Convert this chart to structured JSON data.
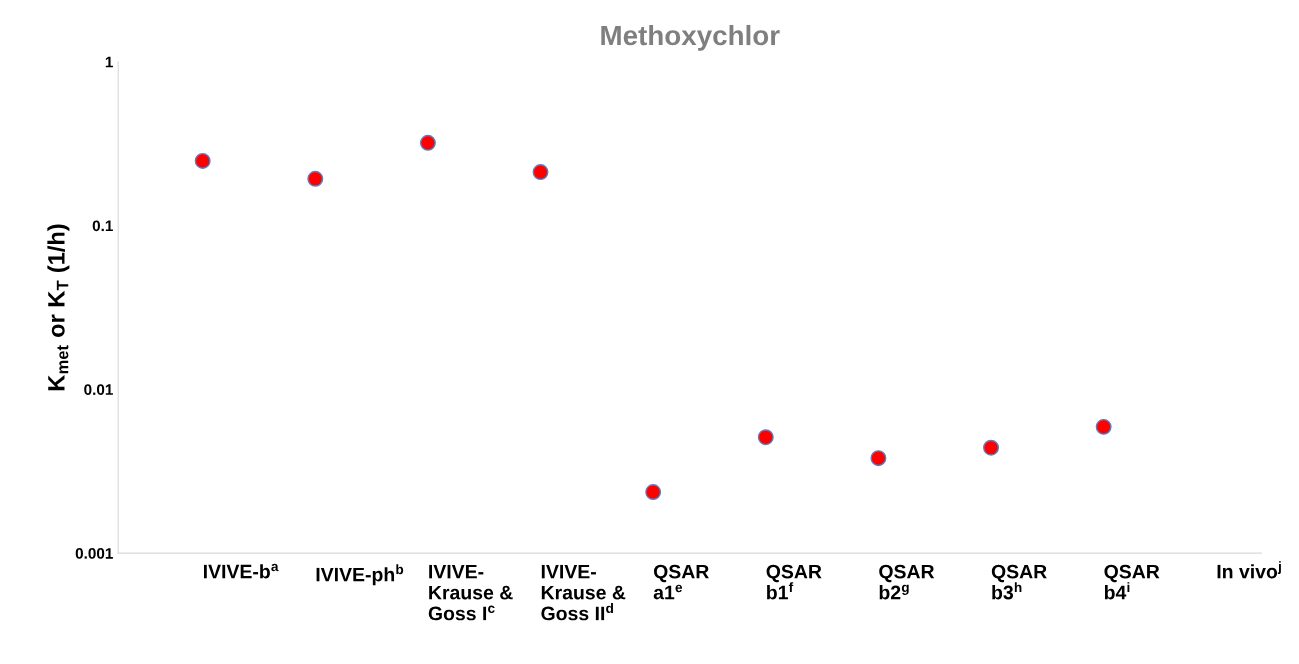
{
  "chart_data": {
    "type": "scatter",
    "title": "Methoxychlor",
    "ylabel": "K$_{met}$ or K$_{T}$ (1/h)",
    "categories": [
      "IVIVE-b$^{a}$",
      "IVIVE-ph$^{b}$",
      "IVIVE-\nKrause &\nGoss I$^{c}$",
      "IVIVE-\nKrause &\nGoss II$^{d}$",
      "QSAR\na1$^{e}$",
      "QSAR\nb1$^{f}$",
      "QSAR\nb2$^{g}$",
      "QSAR\nb3$^{h}$",
      "QSAR\nb4$^{i}$",
      "In vivo$^{j}$"
    ],
    "series": [
      {
        "color": "#ff0000",
        "values": [
          0.248,
          0.193,
          0.32,
          0.212,
          0.00236,
          0.0051,
          0.0038,
          0.0044,
          0.0059,
          null
        ]
      }
    ],
    "log": true,
    "ylim": [
      0.001,
      1
    ],
    "yticks": [
      0.001,
      0.01,
      0.1,
      1
    ],
    "marker": "circle",
    "grid": false
  }
}
